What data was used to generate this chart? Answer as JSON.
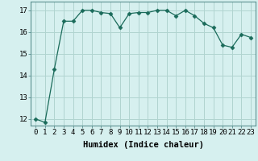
{
  "xlabel": "Humidex (Indice chaleur)",
  "x": [
    0,
    1,
    2,
    3,
    4,
    5,
    6,
    7,
    8,
    9,
    10,
    11,
    12,
    13,
    14,
    15,
    16,
    17,
    18,
    19,
    20,
    21,
    22,
    23
  ],
  "y": [
    12.0,
    11.85,
    14.3,
    16.5,
    16.5,
    17.0,
    17.0,
    16.9,
    16.85,
    16.2,
    16.85,
    16.9,
    16.9,
    17.0,
    17.0,
    16.75,
    17.0,
    16.75,
    16.4,
    16.2,
    15.4,
    15.3,
    15.9,
    15.75
  ],
  "ylim": [
    11.7,
    17.4
  ],
  "yticks": [
    12,
    13,
    14,
    15,
    16,
    17
  ],
  "line_color": "#1a6b5a",
  "marker": "D",
  "marker_size": 2.5,
  "bg_color": "#d6f0ef",
  "grid_color": "#b0d4d0",
  "axis_fontsize": 6.5,
  "tick_fontsize": 6.5,
  "xlabel_fontsize": 7.5
}
